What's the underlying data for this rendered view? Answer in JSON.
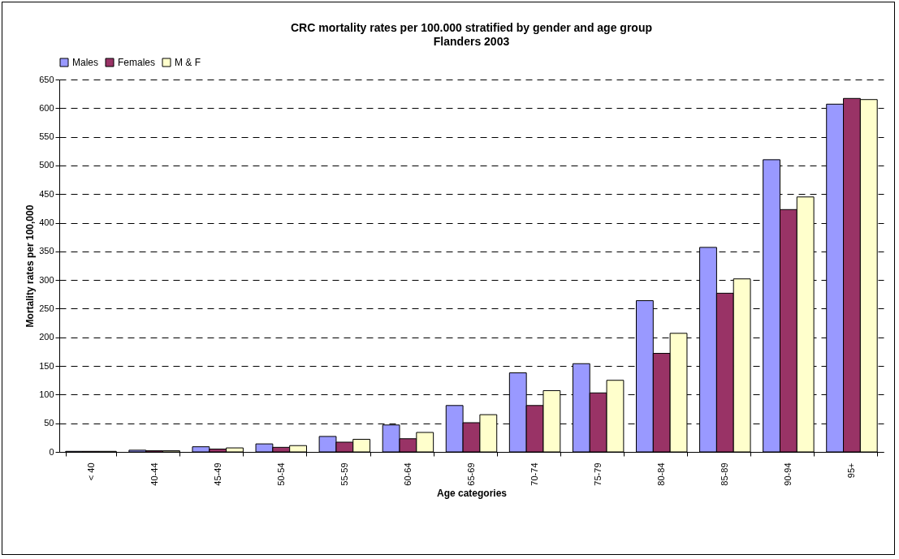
{
  "chart_data": {
    "type": "bar",
    "title": "CRC mortality rates per 100.000 stratified by gender and age group",
    "subtitle": "Flanders 2003",
    "xlabel": "Age categories",
    "ylabel": "Mortality rates per 100,000",
    "categories": [
      "< 40",
      "40-44",
      "45-49",
      "50-54",
      "55-59",
      "60-64",
      "65-69",
      "70-74",
      "75-79",
      "80-84",
      "85-89",
      "90-94",
      "95+"
    ],
    "series": [
      {
        "name": "Males",
        "color": "#9999ff",
        "values": [
          1,
          3,
          9,
          14,
          27,
          47,
          81,
          138,
          154,
          264,
          357,
          510,
          607
        ]
      },
      {
        "name": "Females",
        "color": "#993366",
        "values": [
          1,
          2,
          5,
          8,
          17,
          23,
          51,
          81,
          103,
          172,
          277,
          423,
          617
        ]
      },
      {
        "name": "M & F",
        "color": "#ffffcc",
        "values": [
          1,
          2,
          7,
          11,
          22,
          34,
          65,
          107,
          125,
          207,
          302,
          445,
          615
        ]
      }
    ],
    "ylim": [
      0,
      650
    ],
    "yticks": [
      0,
      50,
      100,
      150,
      200,
      250,
      300,
      350,
      400,
      450,
      500,
      550,
      600,
      650
    ],
    "grid": "y",
    "legend": "top"
  }
}
